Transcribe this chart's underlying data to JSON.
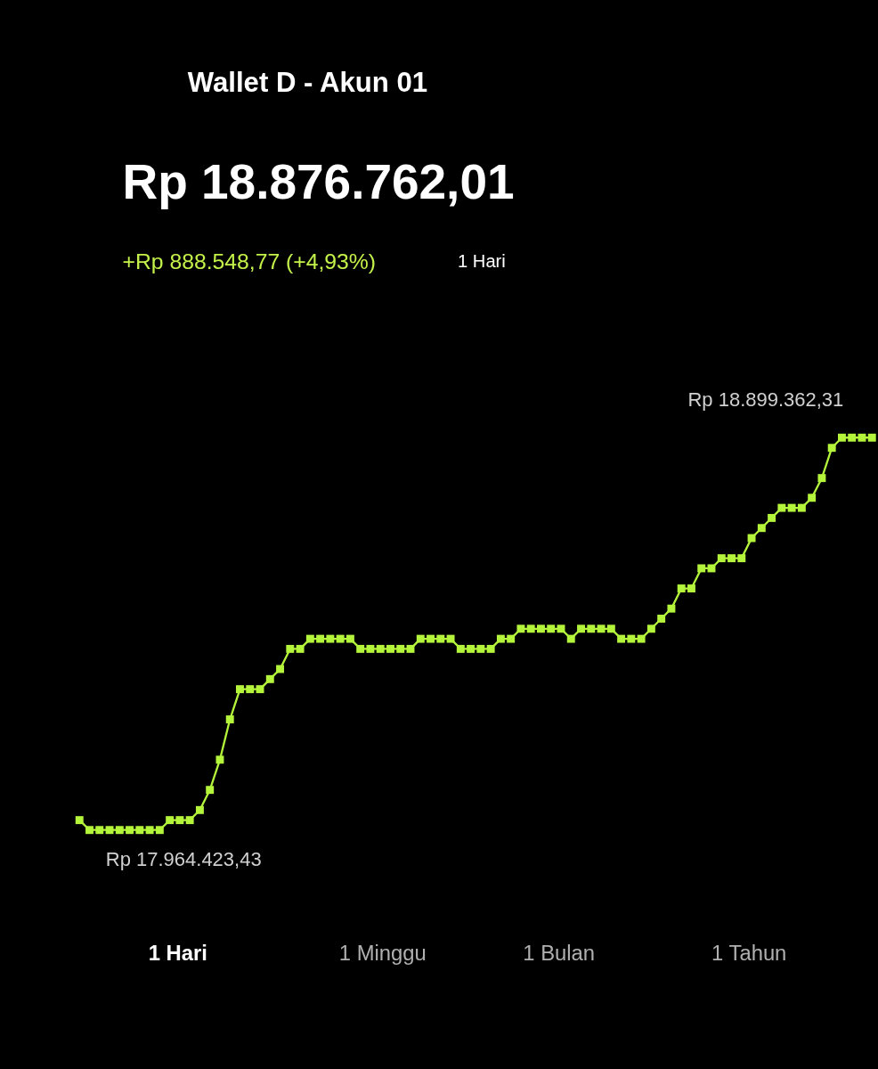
{
  "chart_data": {
    "type": "line",
    "title": "Rp 18.876.762,01",
    "subtitle": "+Rp 888.548,77 (+4,93%)",
    "categories": [
      null,
      null,
      null,
      null,
      null,
      null,
      null,
      null,
      null,
      null,
      null,
      null,
      null,
      null,
      null,
      null,
      null,
      null,
      null,
      null,
      null,
      null,
      null,
      null,
      null,
      null,
      null,
      null,
      null,
      null,
      null,
      null,
      null,
      null,
      null,
      null,
      null,
      null,
      null,
      null,
      null,
      null,
      null,
      null,
      null,
      null,
      null,
      null,
      null,
      null,
      null,
      null,
      null,
      null,
      null,
      null,
      null,
      null,
      null,
      null,
      null,
      null,
      null,
      null,
      null,
      null,
      null,
      null,
      null,
      null,
      null,
      null,
      null,
      null,
      null,
      null,
      null,
      null,
      null,
      null
    ],
    "series": [
      {
        "color": "#b4f53c",
        "values": [
          17988000,
          17964423.43,
          17964423.43,
          17964423.43,
          17964423.43,
          17964423.43,
          17964423.43,
          17964423.43,
          17964423.43,
          17988000,
          17988000,
          17988000,
          18012000,
          18060000,
          18132000,
          18228000,
          18300000,
          18300000,
          18300000,
          18324000,
          18348000,
          18396000,
          18396000,
          18420000,
          18420000,
          18420000,
          18420000,
          18420000,
          18396000,
          18396000,
          18396000,
          18396000,
          18396000,
          18396000,
          18420000,
          18420000,
          18420000,
          18420000,
          18396000,
          18396000,
          18396000,
          18396000,
          18420000,
          18420000,
          18444000,
          18444000,
          18444000,
          18444000,
          18444000,
          18420000,
          18444000,
          18444000,
          18444000,
          18444000,
          18420000,
          18420000,
          18420000,
          18444000,
          18468000,
          18492000,
          18540000,
          18540000,
          18588000,
          18588000,
          18612000,
          18612000,
          18612000,
          18660000,
          18684000,
          18708000,
          18732000,
          18732000,
          18732000,
          18756000,
          18803000,
          18875000,
          18899362.31,
          18899362.31,
          18899362.31,
          18899362.31
        ],
        "value_labels": [
          null,
          "Rp 17.964.423,43",
          null,
          null,
          null,
          null,
          null,
          null,
          null,
          null,
          null,
          null,
          null,
          null,
          null,
          null,
          null,
          null,
          null,
          null,
          null,
          null,
          null,
          null,
          null,
          null,
          null,
          null,
          null,
          null,
          null,
          null,
          null,
          null,
          null,
          null,
          null,
          null,
          null,
          null,
          null,
          null,
          null,
          null,
          null,
          null,
          null,
          null,
          null,
          null,
          null,
          null,
          null,
          null,
          null,
          null,
          null,
          null,
          null,
          null,
          null,
          null,
          null,
          null,
          null,
          null,
          null,
          null,
          null,
          null,
          null,
          null,
          null,
          null,
          null,
          null,
          "Rp 18.899.362,31",
          null,
          null,
          null
        ]
      }
    ],
    "annotations": [
      "Wallet D - Akun 01",
      "1 Hari",
      "1 Hari",
      "1 Minggu",
      "1 Bulan",
      "1 Tahun"
    ],
    "marker": "square",
    "line_style": "solid"
  }
}
